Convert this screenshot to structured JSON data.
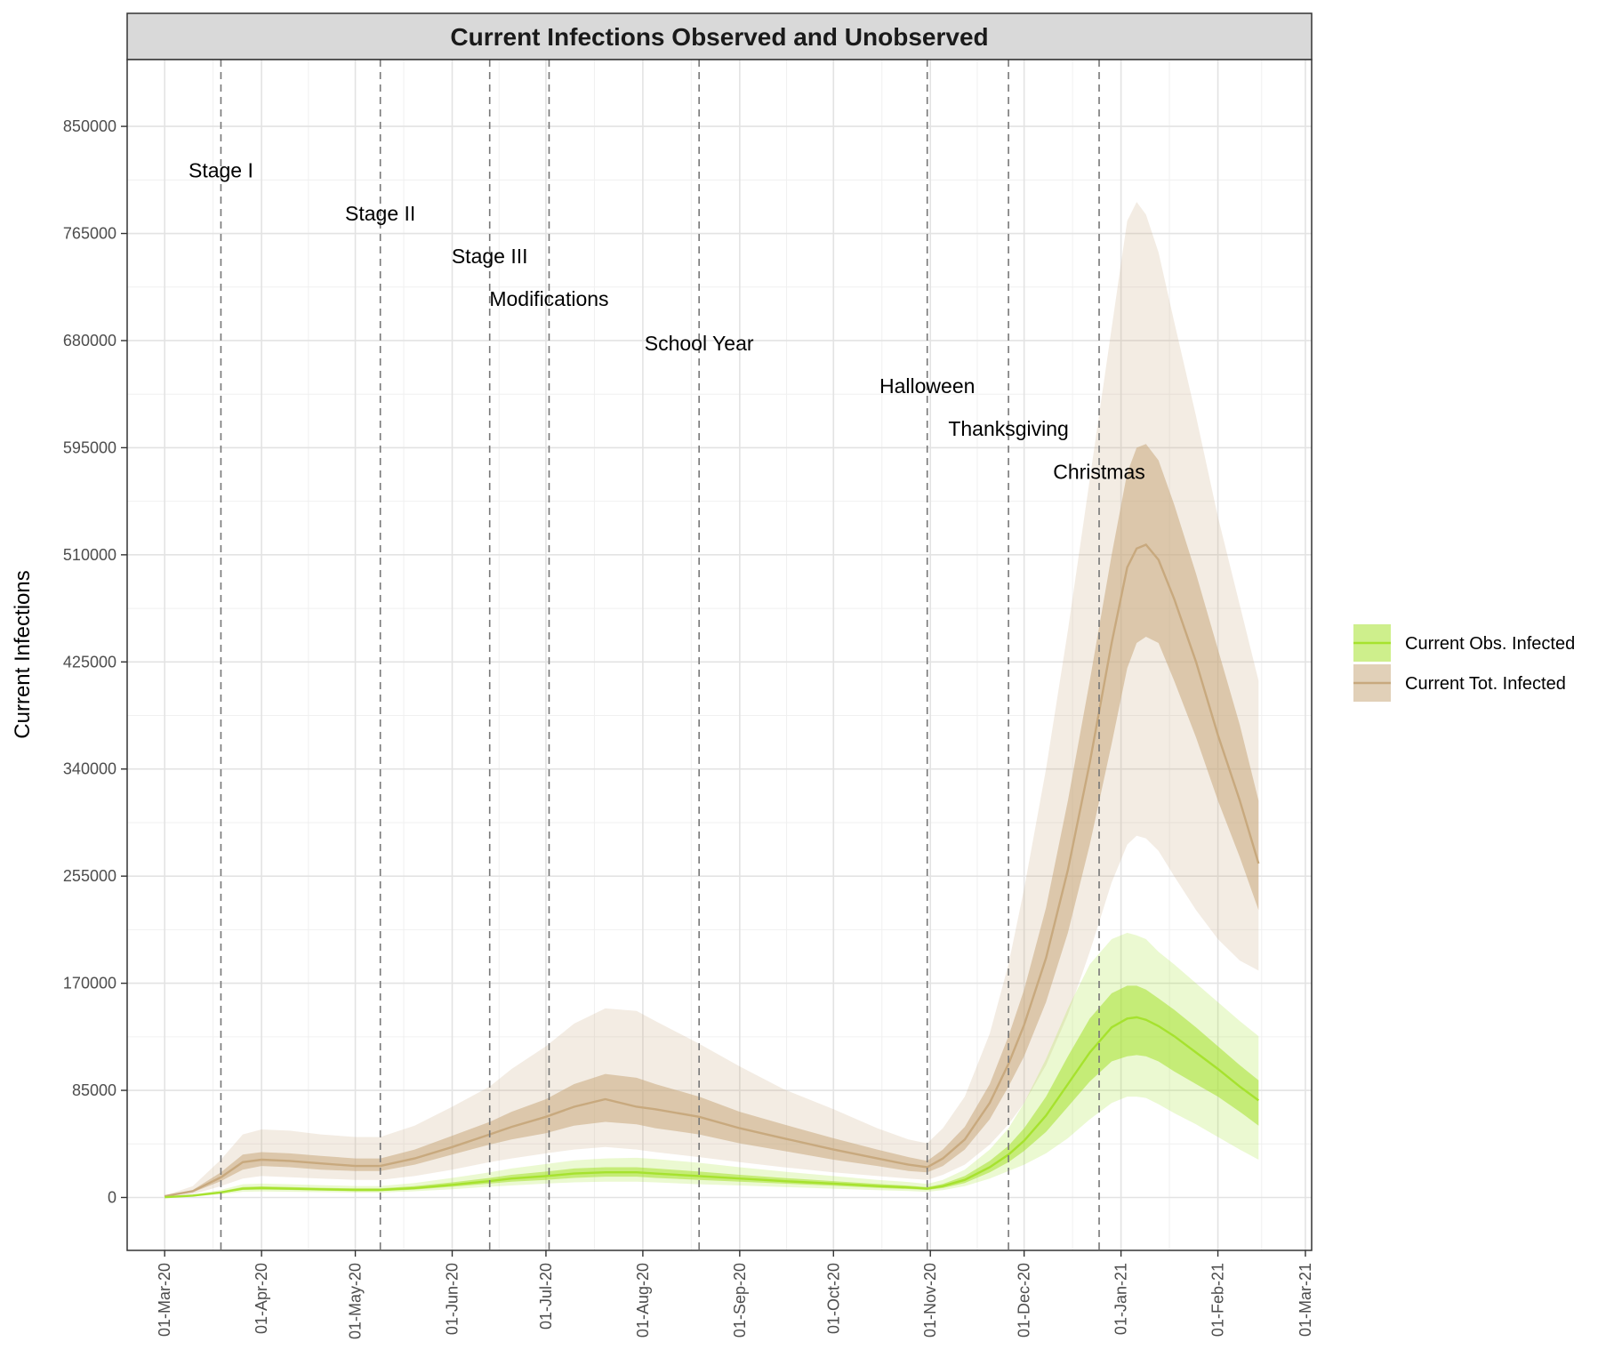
{
  "chart_data": {
    "type": "area",
    "title": "Current Infections Observed and Unobserved",
    "ylabel": "Current Infections",
    "xlabel": "",
    "grid": true,
    "legend_position": "right",
    "xlim": [
      "2020-02-18",
      "2021-03-03"
    ],
    "ylim": [
      -42000,
      903000
    ],
    "yticks": [
      0,
      85000,
      170000,
      255000,
      340000,
      425000,
      510000,
      595000,
      680000,
      765000,
      850000
    ],
    "ytick_labels": [
      "0",
      "85000",
      "170000",
      "255000",
      "340000",
      "425000",
      "510000",
      "595000",
      "680000",
      "765000",
      "850000"
    ],
    "xticks": [
      "2020-03-01",
      "2020-04-01",
      "2020-05-01",
      "2020-06-01",
      "2020-07-01",
      "2020-08-01",
      "2020-09-01",
      "2020-10-01",
      "2020-11-01",
      "2020-12-01",
      "2021-01-01",
      "2021-02-01",
      "2021-03-01"
    ],
    "xtick_labels": [
      "01-Mar-20",
      "01-Apr-20",
      "01-May-20",
      "01-Jun-20",
      "01-Jul-20",
      "01-Aug-20",
      "01-Sep-20",
      "01-Oct-20",
      "01-Nov-20",
      "01-Dec-20",
      "01-Jan-21",
      "01-Feb-21",
      "01-Mar-21"
    ],
    "events": [
      {
        "label": "Stage I",
        "date": "2020-03-19",
        "label_y": 815000
      },
      {
        "label": "Stage II",
        "date": "2020-05-09",
        "label_y": 781000
      },
      {
        "label": "Stage III",
        "date": "2020-06-13",
        "label_y": 747000
      },
      {
        "label": "Modifications",
        "date": "2020-07-02",
        "label_y": 713000
      },
      {
        "label": "School Year",
        "date": "2020-08-19",
        "label_y": 678000
      },
      {
        "label": "Halloween",
        "date": "2020-10-31",
        "label_y": 644000
      },
      {
        "label": "Thanksgiving",
        "date": "2020-11-26",
        "label_y": 610000
      },
      {
        "label": "Christmas",
        "date": "2020-12-25",
        "label_y": 576000
      }
    ],
    "x": [
      "2020-03-01",
      "2020-03-10",
      "2020-03-19",
      "2020-03-26",
      "2020-04-01",
      "2020-04-10",
      "2020-04-20",
      "2020-05-01",
      "2020-05-09",
      "2020-05-20",
      "2020-06-01",
      "2020-06-13",
      "2020-06-20",
      "2020-07-01",
      "2020-07-10",
      "2020-07-20",
      "2020-07-30",
      "2020-08-05",
      "2020-08-19",
      "2020-09-01",
      "2020-09-15",
      "2020-10-01",
      "2020-10-15",
      "2020-10-25",
      "2020-10-31",
      "2020-11-05",
      "2020-11-12",
      "2020-11-20",
      "2020-11-26",
      "2020-12-01",
      "2020-12-08",
      "2020-12-15",
      "2020-12-22",
      "2020-12-29",
      "2021-01-03",
      "2021-01-06",
      "2021-01-09",
      "2021-01-13",
      "2021-01-18",
      "2021-01-25",
      "2021-02-01",
      "2021-02-08",
      "2021-02-14"
    ],
    "series": [
      {
        "name": "Current Tot. Infected",
        "color": "#c8a97e",
        "values": [
          1000,
          5000,
          16000,
          28000,
          30000,
          29000,
          27000,
          25000,
          25000,
          31000,
          40000,
          50000,
          56000,
          64000,
          72000,
          78000,
          72000,
          70000,
          64000,
          55000,
          47000,
          38000,
          31000,
          26000,
          24000,
          31000,
          46000,
          75000,
          106000,
          137000,
          190000,
          260000,
          345000,
          440000,
          500000,
          515000,
          518000,
          506000,
          475000,
          425000,
          367000,
          315000,
          265000
        ],
        "band50_lower": [
          800,
          4000,
          13000,
          22000,
          25000,
          24000,
          22000,
          21000,
          21000,
          26000,
          34000,
          42000,
          46000,
          51000,
          57000,
          60000,
          58000,
          55000,
          50000,
          43000,
          37000,
          30000,
          25000,
          21000,
          20000,
          25000,
          38000,
          62000,
          88000,
          112000,
          155000,
          210000,
          280000,
          360000,
          420000,
          440000,
          445000,
          440000,
          410000,
          365000,
          315000,
          270000,
          228000
        ],
        "band50_upper": [
          1200,
          6000,
          20000,
          34000,
          36000,
          35000,
          33000,
          31000,
          31000,
          38000,
          49000,
          60000,
          68000,
          78000,
          90000,
          98000,
          95000,
          90000,
          80000,
          68000,
          58000,
          47000,
          38000,
          32000,
          29000,
          38000,
          56000,
          90000,
          128000,
          165000,
          230000,
          315000,
          410000,
          510000,
          575000,
          595000,
          598000,
          585000,
          550000,
          495000,
          435000,
          375000,
          315000
        ],
        "band90_lower": [
          500,
          2500,
          9000,
          15000,
          17000,
          16000,
          15000,
          14000,
          14000,
          17000,
          22000,
          28000,
          31000,
          35000,
          38000,
          40000,
          38000,
          36000,
          32000,
          28000,
          24000,
          20000,
          17000,
          15000,
          14000,
          18000,
          26000,
          42000,
          58000,
          75000,
          105000,
          145000,
          195000,
          250000,
          280000,
          287000,
          285000,
          275000,
          255000,
          228000,
          205000,
          188000,
          180000
        ],
        "band90_upper": [
          1500,
          9000,
          30000,
          50000,
          54000,
          53000,
          50000,
          48000,
          48000,
          57000,
          72000,
          88000,
          102000,
          120000,
          138000,
          150000,
          148000,
          140000,
          122000,
          104000,
          86000,
          70000,
          55000,
          46000,
          43000,
          55000,
          80000,
          130000,
          185000,
          245000,
          340000,
          450000,
          570000,
          690000,
          775000,
          790000,
          780000,
          750000,
          695000,
          620000,
          540000,
          470000,
          410000
        ]
      },
      {
        "name": "Current Obs. Infected",
        "color": "#a6e22e",
        "values": [
          200,
          1500,
          4000,
          7000,
          7500,
          7000,
          6500,
          6000,
          6000,
          7500,
          10000,
          13000,
          15000,
          17000,
          19000,
          20000,
          20000,
          19000,
          17000,
          15000,
          13000,
          11000,
          9000,
          8000,
          7000,
          9000,
          14000,
          24000,
          34000,
          45000,
          65000,
          90000,
          115000,
          135000,
          142000,
          143000,
          141000,
          136000,
          128000,
          115000,
          102000,
          88000,
          77000
        ],
        "band50_lower": [
          150,
          1200,
          3300,
          6000,
          6300,
          6000,
          5500,
          5000,
          5000,
          6300,
          8500,
          11000,
          12500,
          14000,
          15500,
          16500,
          16500,
          15500,
          14000,
          12500,
          11000,
          9300,
          7600,
          6700,
          6000,
          7500,
          11500,
          20000,
          28000,
          37000,
          52000,
          72000,
          92000,
          108000,
          112000,
          113000,
          112000,
          108000,
          100000,
          90000,
          80000,
          68000,
          57000
        ],
        "band50_upper": [
          250,
          1800,
          4800,
          8300,
          8800,
          8300,
          7700,
          7200,
          7200,
          9000,
          12000,
          15500,
          18000,
          20500,
          23000,
          24000,
          24000,
          23000,
          20500,
          18000,
          15500,
          13000,
          10700,
          9400,
          8200,
          10800,
          17000,
          29000,
          41000,
          55000,
          80000,
          112000,
          142000,
          162000,
          168000,
          168000,
          165000,
          158000,
          149000,
          135000,
          120000,
          105000,
          93000
        ],
        "band90_lower": [
          100,
          800,
          2500,
          4500,
          4800,
          4500,
          4200,
          3900,
          3900,
          4900,
          6500,
          8500,
          9500,
          11000,
          12000,
          12500,
          12500,
          12000,
          10500,
          9500,
          8300,
          7000,
          5800,
          5100,
          4500,
          5800,
          9000,
          15000,
          21000,
          26000,
          35000,
          47000,
          62000,
          75000,
          80000,
          80000,
          79000,
          74000,
          67000,
          58000,
          48000,
          38000,
          30000
        ],
        "band90_upper": [
          300,
          2300,
          6000,
          10500,
          11000,
          10500,
          9800,
          9100,
          9100,
          11500,
          15500,
          20000,
          23000,
          26500,
          29500,
          31000,
          31500,
          30500,
          27500,
          24000,
          20500,
          17000,
          14000,
          12300,
          10800,
          14000,
          22000,
          38000,
          55000,
          75000,
          110000,
          150000,
          185000,
          205000,
          210000,
          208000,
          205000,
          195000,
          185000,
          170000,
          155000,
          140000,
          128000
        ]
      }
    ]
  }
}
